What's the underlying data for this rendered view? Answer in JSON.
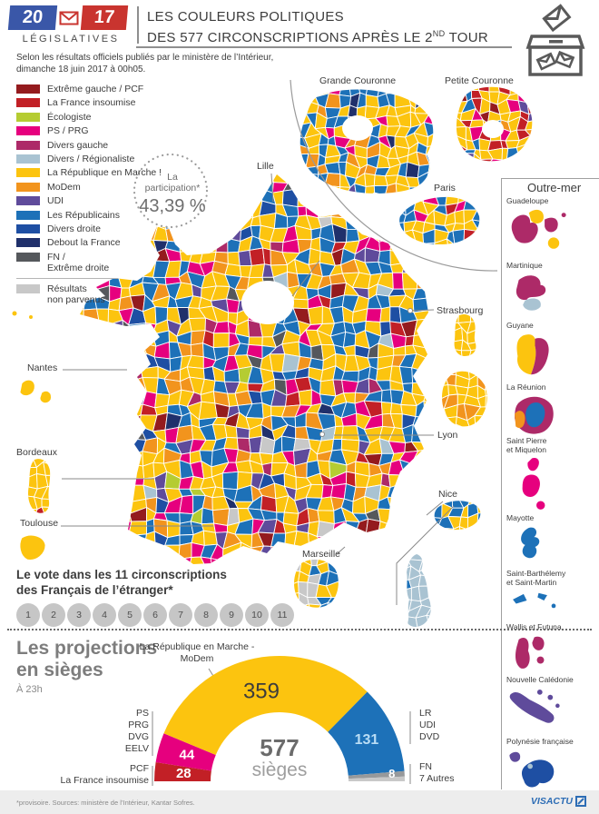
{
  "palette": {
    "darkred": "#941B1E",
    "red": "#C22026",
    "green": "#B5CC32",
    "magenta": "#E6007E",
    "berry": "#AD2A68",
    "lightblue": "#A9C3D2",
    "yellow": "#FCC40F",
    "orange": "#F2941D",
    "purple": "#5F4B9B",
    "blue": "#1D71B8",
    "dkblue": "#1E4FA3",
    "navy": "#20306B",
    "darkgray": "#55585C",
    "lightgray": "#C8C8C8"
  },
  "header": {
    "logo": {
      "year_left": "20",
      "year_right": "17",
      "label": "LÉGISLATIVES",
      "accent_blue": "#3A57A8",
      "accent_red": "#C9342F"
    },
    "title_line1": "LES COULEURS POLITIQUES",
    "title_line2_pre": "DES 577 CIRCONSCRIPTIONS APRÈS LE 2",
    "title_line2_sup": "ND",
    "title_line2_post": " TOUR",
    "subtitle_line1": "Selon les résultats officiels publiés par le ministère de l’Intérieur,",
    "subtitle_line2": "dimanche 18 juin 2017 à 00h05."
  },
  "legend": {
    "items": [
      {
        "label": "Extrême gauche / PCF",
        "color": "#941B1E"
      },
      {
        "label": "La France insoumise",
        "color": "#C22026"
      },
      {
        "label": "Écologiste",
        "color": "#B5CC32"
      },
      {
        "label": "PS / PRG",
        "color": "#E6007E"
      },
      {
        "label": "Divers gauche",
        "color": "#AD2A68"
      },
      {
        "label": "Divers / Régionaliste",
        "color": "#A9C3D2"
      },
      {
        "label": "La République en Marche !",
        "color": "#FCC40F"
      },
      {
        "label": "MoDem",
        "color": "#F2941D"
      },
      {
        "label": "UDI",
        "color": "#5F4B9B"
      },
      {
        "label": "Les Républicains",
        "color": "#1D71B8"
      },
      {
        "label": "Divers droite",
        "color": "#1E4FA3"
      },
      {
        "label": "Debout la France",
        "color": "#20306B"
      },
      {
        "label": "FN /\nExtrême droite",
        "color": "#55585C"
      }
    ],
    "no_results": {
      "label": "Résultats\nnon parvenus",
      "color": "#C8C8C8"
    }
  },
  "participation": {
    "line1": "La",
    "line2": "participation*",
    "value": "43,39 %"
  },
  "map": {
    "cities": [
      "Lille",
      "Strasbourg",
      "Nantes",
      "Bordeaux",
      "Toulouse",
      "Marseille",
      "Lyon",
      "Nice"
    ],
    "inset_labels": [
      "Grande Couronne",
      "Petite Couronne",
      "Paris"
    ]
  },
  "outremer": {
    "title": "Outre-mer",
    "territories": [
      "Guadeloupe",
      "Martinique",
      "Guyane",
      "La Réunion",
      "Saint Pierre\net Miquelon",
      "Mayotte",
      "Saint-Barthélemy\net Saint-Martin",
      "Wallis et Futuna",
      "Nouvelle Calédonie",
      "Polynésie française"
    ]
  },
  "etranger": {
    "heading_line1": "Le vote dans les 11 circonscriptions",
    "heading_line2": "des Français de l’étranger*",
    "numbers": [
      "1",
      "2",
      "3",
      "4",
      "5",
      "6",
      "7",
      "8",
      "9",
      "10",
      "11"
    ]
  },
  "projections": {
    "title_line1": "Les projections",
    "title_line2": "en sièges",
    "time": "À 23h",
    "lrem_line1": "La République en Marche -",
    "lrem_line2": "MoDem",
    "left_top": [
      "PS",
      "PRG",
      "DVG",
      "EELV"
    ],
    "left_bottom": [
      "PCF",
      "La France insoumise"
    ],
    "right_top": [
      "LR",
      "UDI",
      "DVD"
    ],
    "right_bottom": [
      "FN",
      "7 Autres"
    ]
  },
  "chart_data": {
    "type": "pie",
    "variant": "semicircle-donut",
    "title": "Les projections en sièges",
    "subtitle": "À 23h",
    "total": 577,
    "total_label": "577",
    "total_sublabel": "sièges",
    "segments": [
      {
        "label": "PCF / La France insoumise",
        "value": 28,
        "color": "#C22026",
        "value_label_color": "#FFFFFF"
      },
      {
        "label": "PS / PRG / DVG / EELV",
        "value": 44,
        "color": "#E6007E",
        "value_label_color": "#FFFFFF"
      },
      {
        "label": "La République en Marche - MoDem",
        "value": 359,
        "color": "#FCC40F",
        "value_label_color": "#3C3C3C"
      },
      {
        "label": "LR / UDI / DVD",
        "value": 131,
        "color": "#1D71B8",
        "value_label_color": "#B9DDF5"
      },
      {
        "label": "FN",
        "value": 8,
        "color": "#97999B",
        "value_label_color": "#FFFFFF"
      },
      {
        "label": "7 Autres",
        "value": 7,
        "color": "#C8C8C8",
        "value_label_color": ""
      }
    ]
  },
  "footer": {
    "source": "*provisoire. Sources: ministère de l’Intérieur, Kantar Sofres.",
    "brand": "VISACTU"
  }
}
